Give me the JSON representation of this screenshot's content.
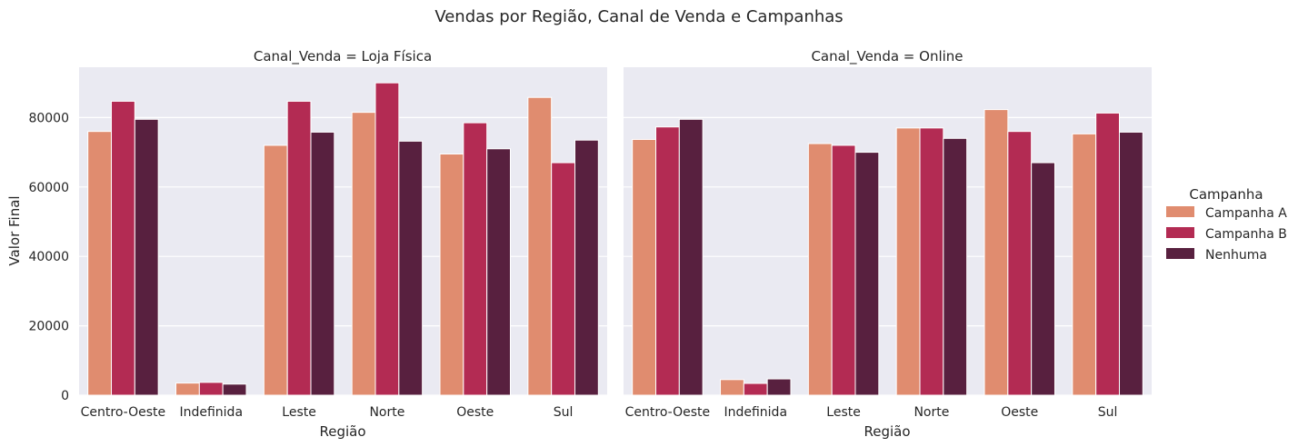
{
  "chart_data": {
    "type": "bar",
    "title": "Vendas por Região, Canal de Venda e Campanhas",
    "xlabel": "Região",
    "ylabel": "Valor Final",
    "ylim": [
      0,
      94500
    ],
    "yticks": [
      0,
      20000,
      40000,
      60000,
      80000
    ],
    "categories": [
      "Centro-Oeste",
      "Indefinida",
      "Leste",
      "Norte",
      "Oeste",
      "Sul"
    ],
    "grid": true,
    "legend": {
      "title": "Campanha",
      "placement": "right",
      "entries": [
        "Campanha A",
        "Campanha B",
        "Nenhuma"
      ]
    },
    "colors": [
      "#e08c6f",
      "#b32b53",
      "#58203f"
    ],
    "background": "#eaeaf2",
    "panels": [
      {
        "title": "Canal_Venda = Loja Física",
        "series": [
          {
            "name": "Campanha A",
            "values": [
              76000,
              3500,
              72000,
              81500,
              69500,
              85800
            ]
          },
          {
            "name": "Campanha B",
            "values": [
              84700,
              3700,
              84700,
              90000,
              78500,
              67000
            ]
          },
          {
            "name": "Nenhuma",
            "values": [
              79500,
              3200,
              75800,
              73200,
              71000,
              73500
            ]
          }
        ]
      },
      {
        "title": "Canal_Venda = Online",
        "series": [
          {
            "name": "Campanha A",
            "values": [
              73700,
              4500,
              72500,
              77000,
              82300,
              75300
            ]
          },
          {
            "name": "Campanha B",
            "values": [
              77300,
              3400,
              72000,
              77000,
              76000,
              81300
            ]
          },
          {
            "name": "Nenhuma",
            "values": [
              79500,
              4700,
              70000,
              74000,
              67000,
              75800
            ]
          }
        ]
      }
    ]
  }
}
